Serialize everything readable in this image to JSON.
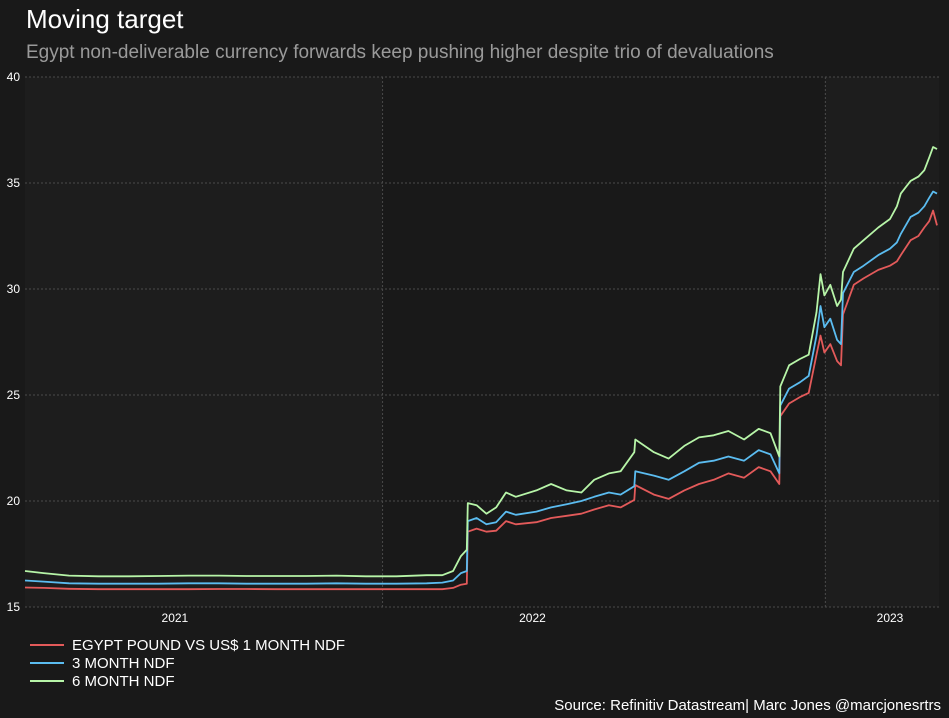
{
  "title": "Moving target",
  "subtitle": "Egypt non-deliverable currency forwards keep pushing higher despite trio of devaluations",
  "source": "Source: Refinitiv Datastream| Marc Jones @marcjonesrtrs",
  "chart_data": {
    "type": "line",
    "title": "Moving target",
    "subtitle": "Egypt non-deliverable currency forwards keep pushing higher despite trio of devaluations",
    "xlabel": "",
    "ylabel": "",
    "x_range": [
      "2020-08-01",
      "2023-02-20"
    ],
    "ylim": [
      15,
      40
    ],
    "yticks": [
      15,
      20,
      25,
      30,
      35,
      40
    ],
    "xticks": [
      {
        "label": "2021",
        "date": "2021-01-01"
      },
      {
        "label": "2022",
        "date": "2022-01-01"
      },
      {
        "label": "2023",
        "date": "2023-01-01"
      }
    ],
    "vertical_markers": [
      "2021-08-01",
      "2022-10-27"
    ],
    "grid": true,
    "legend_position": "bottom-left",
    "colors": {
      "background": "#191919",
      "plot_area": "#1d1d1d",
      "grid": "#4a4a4a",
      "axis_text": "#ffffff"
    },
    "series": [
      {
        "name": "EGYPT POUND VS US$ 1 MONTH NDF",
        "color": "#e35a5a",
        "points": [
          [
            "2020-08-01",
            15.92
          ],
          [
            "2020-08-20",
            15.9
          ],
          [
            "2020-09-15",
            15.86
          ],
          [
            "2020-10-15",
            15.84
          ],
          [
            "2020-11-15",
            15.84
          ],
          [
            "2020-12-15",
            15.84
          ],
          [
            "2021-01-15",
            15.84
          ],
          [
            "2021-02-15",
            15.85
          ],
          [
            "2021-03-15",
            15.85
          ],
          [
            "2021-04-15",
            15.84
          ],
          [
            "2021-05-15",
            15.84
          ],
          [
            "2021-06-15",
            15.84
          ],
          [
            "2021-07-15",
            15.84
          ],
          [
            "2021-08-15",
            15.84
          ],
          [
            "2021-09-15",
            15.84
          ],
          [
            "2021-10-01",
            15.84
          ],
          [
            "2021-10-12",
            15.9
          ],
          [
            "2021-10-20",
            16.05
          ],
          [
            "2021-10-26",
            16.1
          ],
          [
            "2021-10-27",
            18.55
          ],
          [
            "2021-11-05",
            18.7
          ],
          [
            "2021-11-15",
            18.55
          ],
          [
            "2021-11-25",
            18.6
          ],
          [
            "2021-12-05",
            19.05
          ],
          [
            "2021-12-15",
            18.9
          ],
          [
            "2022-01-05",
            19.0
          ],
          [
            "2022-01-20",
            19.2
          ],
          [
            "2022-02-05",
            19.3
          ],
          [
            "2022-02-20",
            19.4
          ],
          [
            "2022-03-05",
            19.6
          ],
          [
            "2022-03-20",
            19.8
          ],
          [
            "2022-04-01",
            19.7
          ],
          [
            "2022-04-15",
            20.05
          ],
          [
            "2022-04-16",
            20.75
          ],
          [
            "2022-05-05",
            20.3
          ],
          [
            "2022-05-20",
            20.1
          ],
          [
            "2022-06-05",
            20.5
          ],
          [
            "2022-06-20",
            20.8
          ],
          [
            "2022-07-05",
            21.0
          ],
          [
            "2022-07-20",
            21.3
          ],
          [
            "2022-08-05",
            21.1
          ],
          [
            "2022-08-20",
            21.6
          ],
          [
            "2022-09-01",
            21.4
          ],
          [
            "2022-09-10",
            20.8
          ],
          [
            "2022-09-11",
            24.0
          ],
          [
            "2022-09-20",
            24.6
          ],
          [
            "2022-10-01",
            24.9
          ],
          [
            "2022-10-10",
            25.1
          ],
          [
            "2022-10-18",
            26.9
          ],
          [
            "2022-10-22",
            27.8
          ],
          [
            "2022-10-26",
            27.0
          ],
          [
            "2022-11-01",
            27.4
          ],
          [
            "2022-11-08",
            26.6
          ],
          [
            "2022-11-12",
            26.4
          ],
          [
            "2022-11-14",
            28.8
          ],
          [
            "2022-11-25",
            30.2
          ],
          [
            "2022-12-05",
            30.5
          ],
          [
            "2022-12-20",
            30.9
          ],
          [
            "2023-01-01",
            31.1
          ],
          [
            "2023-01-08",
            31.3
          ],
          [
            "2023-01-12",
            31.6
          ],
          [
            "2023-01-22",
            32.3
          ],
          [
            "2023-01-30",
            32.5
          ],
          [
            "2023-02-05",
            32.9
          ],
          [
            "2023-02-10",
            33.2
          ],
          [
            "2023-02-14",
            33.7
          ],
          [
            "2023-02-18",
            33.0
          ]
        ]
      },
      {
        "name": "3 MONTH NDF",
        "color": "#5bbcf0",
        "points": [
          [
            "2020-08-01",
            16.25
          ],
          [
            "2020-08-20",
            16.2
          ],
          [
            "2020-09-15",
            16.12
          ],
          [
            "2020-10-15",
            16.1
          ],
          [
            "2020-11-15",
            16.1
          ],
          [
            "2020-12-15",
            16.1
          ],
          [
            "2021-01-15",
            16.12
          ],
          [
            "2021-02-15",
            16.12
          ],
          [
            "2021-03-15",
            16.1
          ],
          [
            "2021-04-15",
            16.1
          ],
          [
            "2021-05-15",
            16.1
          ],
          [
            "2021-06-15",
            16.12
          ],
          [
            "2021-07-15",
            16.1
          ],
          [
            "2021-08-15",
            16.1
          ],
          [
            "2021-09-15",
            16.12
          ],
          [
            "2021-10-01",
            16.15
          ],
          [
            "2021-10-12",
            16.25
          ],
          [
            "2021-10-20",
            16.6
          ],
          [
            "2021-10-26",
            16.7
          ],
          [
            "2021-10-27",
            19.05
          ],
          [
            "2021-11-05",
            19.2
          ],
          [
            "2021-11-15",
            18.9
          ],
          [
            "2021-11-25",
            19.0
          ],
          [
            "2021-12-05",
            19.5
          ],
          [
            "2021-12-15",
            19.35
          ],
          [
            "2022-01-05",
            19.5
          ],
          [
            "2022-01-20",
            19.7
          ],
          [
            "2022-02-05",
            19.85
          ],
          [
            "2022-02-20",
            20.0
          ],
          [
            "2022-03-05",
            20.2
          ],
          [
            "2022-03-20",
            20.4
          ],
          [
            "2022-04-01",
            20.3
          ],
          [
            "2022-04-15",
            20.7
          ],
          [
            "2022-04-16",
            21.4
          ],
          [
            "2022-05-05",
            21.2
          ],
          [
            "2022-05-20",
            21.0
          ],
          [
            "2022-06-05",
            21.4
          ],
          [
            "2022-06-20",
            21.8
          ],
          [
            "2022-07-05",
            21.9
          ],
          [
            "2022-07-20",
            22.1
          ],
          [
            "2022-08-05",
            21.9
          ],
          [
            "2022-08-20",
            22.4
          ],
          [
            "2022-09-01",
            22.2
          ],
          [
            "2022-09-10",
            21.3
          ],
          [
            "2022-09-11",
            24.5
          ],
          [
            "2022-09-20",
            25.3
          ],
          [
            "2022-10-01",
            25.6
          ],
          [
            "2022-10-10",
            25.9
          ],
          [
            "2022-10-18",
            27.8
          ],
          [
            "2022-10-22",
            29.2
          ],
          [
            "2022-10-26",
            28.2
          ],
          [
            "2022-11-01",
            28.6
          ],
          [
            "2022-11-08",
            27.6
          ],
          [
            "2022-11-12",
            27.4
          ],
          [
            "2022-11-14",
            29.8
          ],
          [
            "2022-11-25",
            30.8
          ],
          [
            "2022-12-05",
            31.1
          ],
          [
            "2022-12-20",
            31.6
          ],
          [
            "2023-01-01",
            31.9
          ],
          [
            "2023-01-08",
            32.2
          ],
          [
            "2023-01-12",
            32.6
          ],
          [
            "2023-01-22",
            33.4
          ],
          [
            "2023-01-30",
            33.6
          ],
          [
            "2023-02-05",
            33.9
          ],
          [
            "2023-02-10",
            34.3
          ],
          [
            "2023-02-14",
            34.6
          ],
          [
            "2023-02-18",
            34.5
          ]
        ]
      },
      {
        "name": "6 MONTH NDF",
        "color": "#b7f5a8",
        "points": [
          [
            "2020-08-01",
            16.7
          ],
          [
            "2020-08-20",
            16.6
          ],
          [
            "2020-09-15",
            16.48
          ],
          [
            "2020-10-15",
            16.45
          ],
          [
            "2020-11-15",
            16.45
          ],
          [
            "2020-12-15",
            16.46
          ],
          [
            "2021-01-15",
            16.48
          ],
          [
            "2021-02-15",
            16.48
          ],
          [
            "2021-03-15",
            16.46
          ],
          [
            "2021-04-15",
            16.46
          ],
          [
            "2021-05-15",
            16.46
          ],
          [
            "2021-06-15",
            16.48
          ],
          [
            "2021-07-15",
            16.45
          ],
          [
            "2021-08-15",
            16.45
          ],
          [
            "2021-09-15",
            16.5
          ],
          [
            "2021-10-01",
            16.5
          ],
          [
            "2021-10-12",
            16.7
          ],
          [
            "2021-10-20",
            17.4
          ],
          [
            "2021-10-26",
            17.7
          ],
          [
            "2021-10-27",
            19.9
          ],
          [
            "2021-11-05",
            19.8
          ],
          [
            "2021-11-15",
            19.4
          ],
          [
            "2021-11-25",
            19.7
          ],
          [
            "2021-12-05",
            20.4
          ],
          [
            "2021-12-15",
            20.2
          ],
          [
            "2022-01-05",
            20.5
          ],
          [
            "2022-01-20",
            20.8
          ],
          [
            "2022-02-05",
            20.5
          ],
          [
            "2022-02-20",
            20.4
          ],
          [
            "2022-03-05",
            21.0
          ],
          [
            "2022-03-20",
            21.3
          ],
          [
            "2022-04-01",
            21.4
          ],
          [
            "2022-04-15",
            22.3
          ],
          [
            "2022-04-16",
            22.9
          ],
          [
            "2022-05-05",
            22.3
          ],
          [
            "2022-05-20",
            22.0
          ],
          [
            "2022-06-05",
            22.6
          ],
          [
            "2022-06-20",
            23.0
          ],
          [
            "2022-07-05",
            23.1
          ],
          [
            "2022-07-20",
            23.3
          ],
          [
            "2022-08-05",
            22.9
          ],
          [
            "2022-08-20",
            23.4
          ],
          [
            "2022-09-01",
            23.2
          ],
          [
            "2022-09-10",
            22.1
          ],
          [
            "2022-09-11",
            25.4
          ],
          [
            "2022-09-20",
            26.4
          ],
          [
            "2022-10-01",
            26.7
          ],
          [
            "2022-10-10",
            26.9
          ],
          [
            "2022-10-18",
            28.9
          ],
          [
            "2022-10-22",
            30.7
          ],
          [
            "2022-10-26",
            29.7
          ],
          [
            "2022-11-01",
            30.2
          ],
          [
            "2022-11-08",
            29.2
          ],
          [
            "2022-11-12",
            29.5
          ],
          [
            "2022-11-14",
            30.8
          ],
          [
            "2022-11-25",
            31.9
          ],
          [
            "2022-12-05",
            32.3
          ],
          [
            "2022-12-20",
            32.9
          ],
          [
            "2023-01-01",
            33.3
          ],
          [
            "2023-01-08",
            33.9
          ],
          [
            "2023-01-12",
            34.5
          ],
          [
            "2023-01-22",
            35.1
          ],
          [
            "2023-01-30",
            35.3
          ],
          [
            "2023-02-05",
            35.6
          ],
          [
            "2023-02-10",
            36.2
          ],
          [
            "2023-02-14",
            36.7
          ],
          [
            "2023-02-18",
            36.6
          ]
        ]
      }
    ]
  }
}
